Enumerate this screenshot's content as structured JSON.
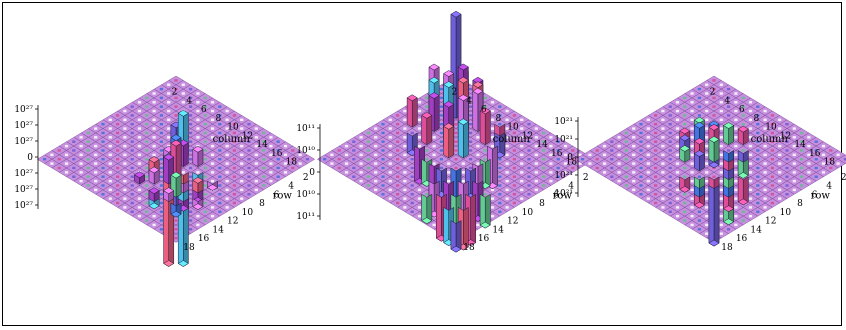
{
  "chart_data": [
    {
      "type": "bar3d",
      "row_ticks": [
        "2",
        "4",
        "6",
        "8",
        "10",
        "12",
        "14",
        "16",
        "18"
      ],
      "column_ticks": [
        "2",
        "4",
        "6",
        "8",
        "10",
        "12",
        "14",
        "16",
        "18"
      ],
      "xlabel": "column",
      "ylabel": "row",
      "z_ticks": [
        "10²⁷",
        "10²⁷",
        "10²⁷",
        "0",
        "10²⁷",
        "10²⁷",
        "10²⁷"
      ],
      "z_tick_values": [
        3,
        2,
        1,
        0,
        -1,
        -2,
        -3
      ],
      "bars": [
        {
          "row": 9,
          "col": 9,
          "value": 1.6
        },
        {
          "row": 10,
          "col": 9,
          "value": 2.6
        },
        {
          "row": 9,
          "col": 10,
          "value": -2.4
        },
        {
          "row": 11,
          "col": 10,
          "value": 1.3
        },
        {
          "row": 10,
          "col": 11,
          "value": 0.9
        },
        {
          "row": 12,
          "col": 11,
          "value": -1.8
        },
        {
          "row": 11,
          "col": 12,
          "value": 1.0
        },
        {
          "row": 13,
          "col": 12,
          "value": -2.2
        },
        {
          "row": 12,
          "col": 13,
          "value": 1.5
        },
        {
          "row": 14,
          "col": 13,
          "value": -4.6
        },
        {
          "row": 13,
          "col": 14,
          "value": -4.6
        },
        {
          "row": 10,
          "col": 13,
          "value": 0.8
        },
        {
          "row": 13,
          "col": 10,
          "value": -0.9
        },
        {
          "row": 11,
          "col": 14,
          "value": 0.7
        },
        {
          "row": 14,
          "col": 11,
          "value": -1.2
        },
        {
          "row": 12,
          "col": 9,
          "value": 0.9
        },
        {
          "row": 9,
          "col": 12,
          "value": -0.8
        },
        {
          "row": 15,
          "col": 12,
          "value": 0.6
        },
        {
          "row": 12,
          "col": 15,
          "value": -1.0
        },
        {
          "row": 14,
          "col": 15,
          "value": 0.5
        },
        {
          "row": 15,
          "col": 14,
          "value": -0.6
        },
        {
          "row": 13,
          "col": 16,
          "value": 0.5
        },
        {
          "row": 16,
          "col": 13,
          "value": -0.5
        },
        {
          "row": 10,
          "col": 15,
          "value": 0.4
        },
        {
          "row": 15,
          "col": 10,
          "value": -0.4
        },
        {
          "row": 11,
          "col": 11,
          "value": 1.9
        },
        {
          "row": 12,
          "col": 12,
          "value": 2.1
        },
        {
          "row": 13,
          "col": 13,
          "value": -1.6
        },
        {
          "row": 14,
          "col": 14,
          "value": 1.2
        },
        {
          "row": 15,
          "col": 15,
          "value": -0.7
        }
      ]
    },
    {
      "type": "bar3d",
      "row_ticks": [
        "2",
        "4",
        "6",
        "8",
        "10",
        "12",
        "14",
        "16",
        "18"
      ],
      "column_ticks": [
        "2",
        "4",
        "6",
        "8",
        "10",
        "12",
        "14",
        "16",
        "18"
      ],
      "xlabel": "column",
      "ylabel": "row",
      "z_ticks": [
        "10¹¹",
        "10¹⁰",
        "0",
        "10¹⁰",
        "10¹¹"
      ],
      "z_tick_values": [
        2,
        1,
        0,
        -1,
        -2
      ],
      "bars": [
        {
          "row": 5,
          "col": 5,
          "value": 4.6
        },
        {
          "row": 6,
          "col": 5,
          "value": 2.2
        },
        {
          "row": 5,
          "col": 6,
          "value": 2.0
        },
        {
          "row": 7,
          "col": 6,
          "value": 2.8
        },
        {
          "row": 6,
          "col": 7,
          "value": 2.5
        },
        {
          "row": 4,
          "col": 7,
          "value": 1.8
        },
        {
          "row": 7,
          "col": 4,
          "value": 1.6
        },
        {
          "row": 8,
          "col": 7,
          "value": 2.6
        },
        {
          "row": 7,
          "col": 8,
          "value": 2.4
        },
        {
          "row": 3,
          "col": 6,
          "value": 2.0
        },
        {
          "row": 6,
          "col": 3,
          "value": 1.4
        },
        {
          "row": 9,
          "col": 8,
          "value": 2.2
        },
        {
          "row": 8,
          "col": 9,
          "value": 1.9
        },
        {
          "row": 8,
          "col": 5,
          "value": 1.7
        },
        {
          "row": 5,
          "col": 8,
          "value": 1.5
        },
        {
          "row": 10,
          "col": 9,
          "value": 1.5
        },
        {
          "row": 9,
          "col": 10,
          "value": 1.3
        },
        {
          "row": 4,
          "col": 4,
          "value": 1.1
        },
        {
          "row": 3,
          "col": 9,
          "value": 1.2
        },
        {
          "row": 9,
          "col": 3,
          "value": -1.4
        },
        {
          "row": 11,
          "col": 6,
          "value": -1.8
        },
        {
          "row": 6,
          "col": 11,
          "value": -1.6
        },
        {
          "row": 12,
          "col": 9,
          "value": -2.0
        },
        {
          "row": 9,
          "col": 12,
          "value": -1.9
        },
        {
          "row": 13,
          "col": 12,
          "value": -2.3
        },
        {
          "row": 12,
          "col": 13,
          "value": -2.1
        },
        {
          "row": 14,
          "col": 14,
          "value": -2.4
        },
        {
          "row": 15,
          "col": 13,
          "value": -2.2
        },
        {
          "row": 13,
          "col": 15,
          "value": -2.0
        },
        {
          "row": 16,
          "col": 15,
          "value": -1.8
        },
        {
          "row": 15,
          "col": 16,
          "value": -1.6
        },
        {
          "row": 11,
          "col": 11,
          "value": -1.5
        },
        {
          "row": 10,
          "col": 12,
          "value": -1.2
        },
        {
          "row": 12,
          "col": 10,
          "value": -1.3
        },
        {
          "row": 14,
          "col": 11,
          "value": -1.7
        },
        {
          "row": 11,
          "col": 14,
          "value": -1.5
        },
        {
          "row": 17,
          "col": 17,
          "value": -1.3
        },
        {
          "row": 16,
          "col": 12,
          "value": -1.4
        },
        {
          "row": 12,
          "col": 16,
          "value": -1.2
        },
        {
          "row": 10,
          "col": 6,
          "value": 1.4
        },
        {
          "row": 6,
          "col": 10,
          "value": 1.2
        },
        {
          "row": 4,
          "col": 10,
          "value": -0.9
        },
        {
          "row": 10,
          "col": 4,
          "value": -1.0
        },
        {
          "row": 8,
          "col": 12,
          "value": -1.1
        },
        {
          "row": 12,
          "col": 8,
          "value": -1.2
        }
      ]
    },
    {
      "type": "bar3d",
      "row_ticks": [
        "2",
        "4",
        "6",
        "8",
        "10",
        "12",
        "14",
        "16",
        "18"
      ],
      "column_ticks": [
        "2",
        "4",
        "6",
        "8",
        "10",
        "12",
        "14",
        "16",
        "18"
      ],
      "xlabel": "column",
      "ylabel": "row",
      "z_ticks": [
        "10²¹",
        "10²¹",
        "0",
        "10²¹",
        "10²¹"
      ],
      "z_tick_values": [
        2,
        1,
        0,
        -1,
        -2
      ],
      "bars": [
        {
          "row": 8,
          "col": 8,
          "value": 0.8
        },
        {
          "row": 7,
          "col": 9,
          "value": 1.2
        },
        {
          "row": 9,
          "col": 7,
          "value": 0.9
        },
        {
          "row": 8,
          "col": 10,
          "value": 1.4
        },
        {
          "row": 10,
          "col": 8,
          "value": -1.3
        },
        {
          "row": 7,
          "col": 11,
          "value": 0.7
        },
        {
          "row": 11,
          "col": 7,
          "value": -1.1
        },
        {
          "row": 9,
          "col": 11,
          "value": 1.0
        },
        {
          "row": 11,
          "col": 9,
          "value": -1.6
        },
        {
          "row": 10,
          "col": 12,
          "value": 0.8
        },
        {
          "row": 12,
          "col": 10,
          "value": -2.0
        },
        {
          "row": 11,
          "col": 13,
          "value": -1.2
        },
        {
          "row": 13,
          "col": 11,
          "value": -2.5
        },
        {
          "row": 12,
          "col": 12,
          "value": -1.9
        },
        {
          "row": 13,
          "col": 13,
          "value": -3.2
        },
        {
          "row": 14,
          "col": 12,
          "value": -1.0
        },
        {
          "row": 12,
          "col": 14,
          "value": -0.9
        },
        {
          "row": 6,
          "col": 10,
          "value": 0.6
        },
        {
          "row": 10,
          "col": 6,
          "value": 0.7
        },
        {
          "row": 7,
          "col": 7,
          "value": 0.5
        },
        {
          "row": 9,
          "col": 9,
          "value": -0.8
        },
        {
          "row": 10,
          "col": 10,
          "value": 1.1
        },
        {
          "row": 8,
          "col": 12,
          "value": 0.6
        },
        {
          "row": 12,
          "col": 8,
          "value": -0.9
        },
        {
          "row": 14,
          "col": 10,
          "value": -1.4
        },
        {
          "row": 10,
          "col": 14,
          "value": -0.7
        },
        {
          "row": 15,
          "col": 13,
          "value": -0.8
        },
        {
          "row": 13,
          "col": 15,
          "value": -0.6
        }
      ]
    }
  ]
}
